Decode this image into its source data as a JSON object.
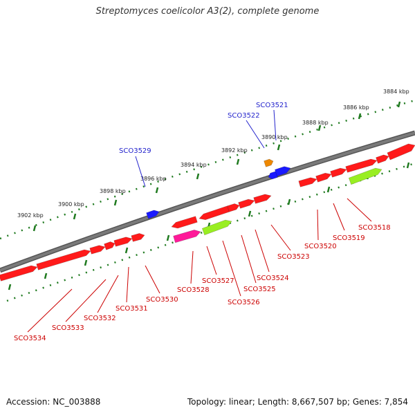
{
  "title": "Streptomyces coelicolor A3(2), complete genome",
  "footer": {
    "accession": "Accession: NC_003888",
    "stats": "Topology: linear; Length: 8,667,507 bp; Genes: 7,854"
  },
  "colors": {
    "backbone": "#7a7a7a",
    "ruler": "#1f7a1f",
    "gene_default": "#ff1a1a",
    "gene_blue": "#1a1aff",
    "gene_orange": "#ee8800",
    "gene_pink": "#ff1a99",
    "gene_lime": "#99ee22",
    "label_blue": "#2222cc",
    "label_red": "#cc0000"
  },
  "ruler_labels": [
    "3884 kbp",
    "3886 kbp",
    "3888 kbp",
    "3890 kbp",
    "3892 kbp",
    "3894 kbp",
    "3896 kbp",
    "3898 kbp",
    "3900 kbp",
    "3902 kbp"
  ],
  "labels_top": [
    "SCO3521",
    "SCO3522",
    "SCO3529"
  ],
  "labels_bottom": [
    "SCO3518",
    "SCO3519",
    "SCO3520",
    "SCO3523",
    "SCO3524",
    "SCO3525",
    "SCO3526",
    "SCO3527",
    "SCO3528",
    "SCO3530",
    "SCO3531",
    "SCO3532",
    "SCO3533",
    "SCO3534"
  ]
}
